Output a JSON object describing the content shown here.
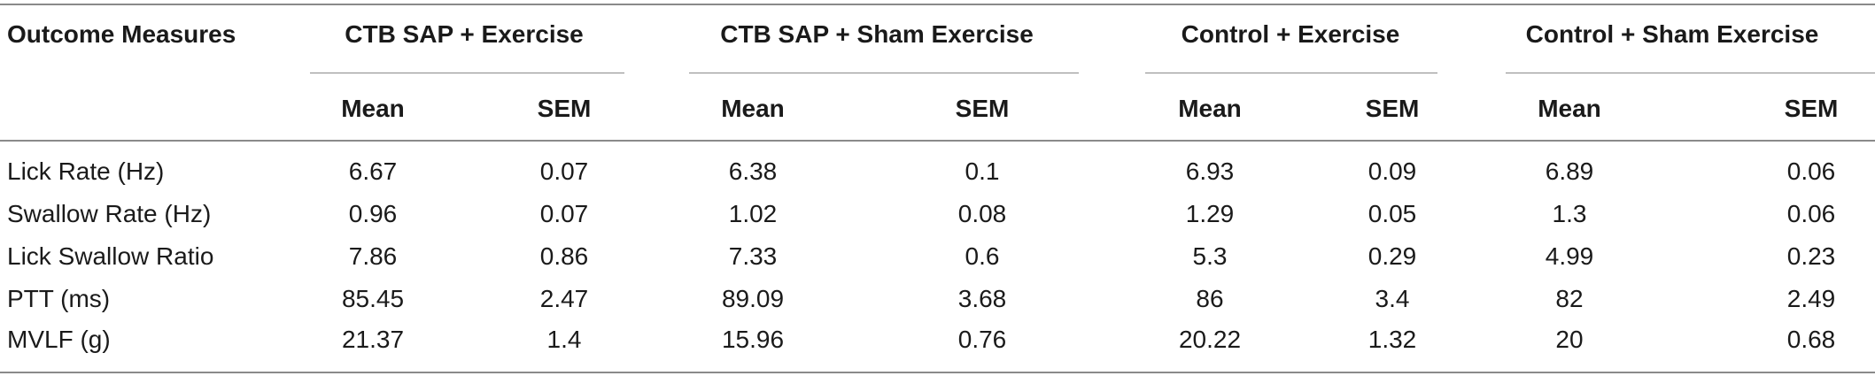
{
  "table": {
    "outcome_header": "Outcome Measures",
    "groups": [
      "CTB SAP + Exercise",
      "CTB SAP + Sham Exercise",
      "Control + Exercise",
      "Control + Sham Exercise"
    ],
    "subheaders": [
      "Mean",
      "SEM"
    ],
    "rows": [
      {
        "label": "Lick Rate (Hz)",
        "values": [
          "6.67",
          "0.07",
          "6.38",
          "0.1",
          "6.93",
          "0.09",
          "6.89",
          "0.06"
        ]
      },
      {
        "label": "Swallow Rate (Hz)",
        "values": [
          "0.96",
          "0.07",
          "1.02",
          "0.08",
          "1.29",
          "0.05",
          "1.3",
          "0.06"
        ]
      },
      {
        "label": "Lick Swallow Ratio",
        "values": [
          "7.86",
          "0.86",
          "7.33",
          "0.6",
          "5.3",
          "0.29",
          "4.99",
          "0.23"
        ]
      },
      {
        "label": "PTT (ms)",
        "values": [
          "85.45",
          "2.47",
          "89.09",
          "3.68",
          "86",
          "3.4",
          "82",
          "2.49"
        ]
      },
      {
        "label": "MVLF (g)",
        "values": [
          "21.37",
          "1.4",
          "15.96",
          "0.76",
          "20.22",
          "1.32",
          "20",
          "0.68"
        ]
      }
    ]
  }
}
